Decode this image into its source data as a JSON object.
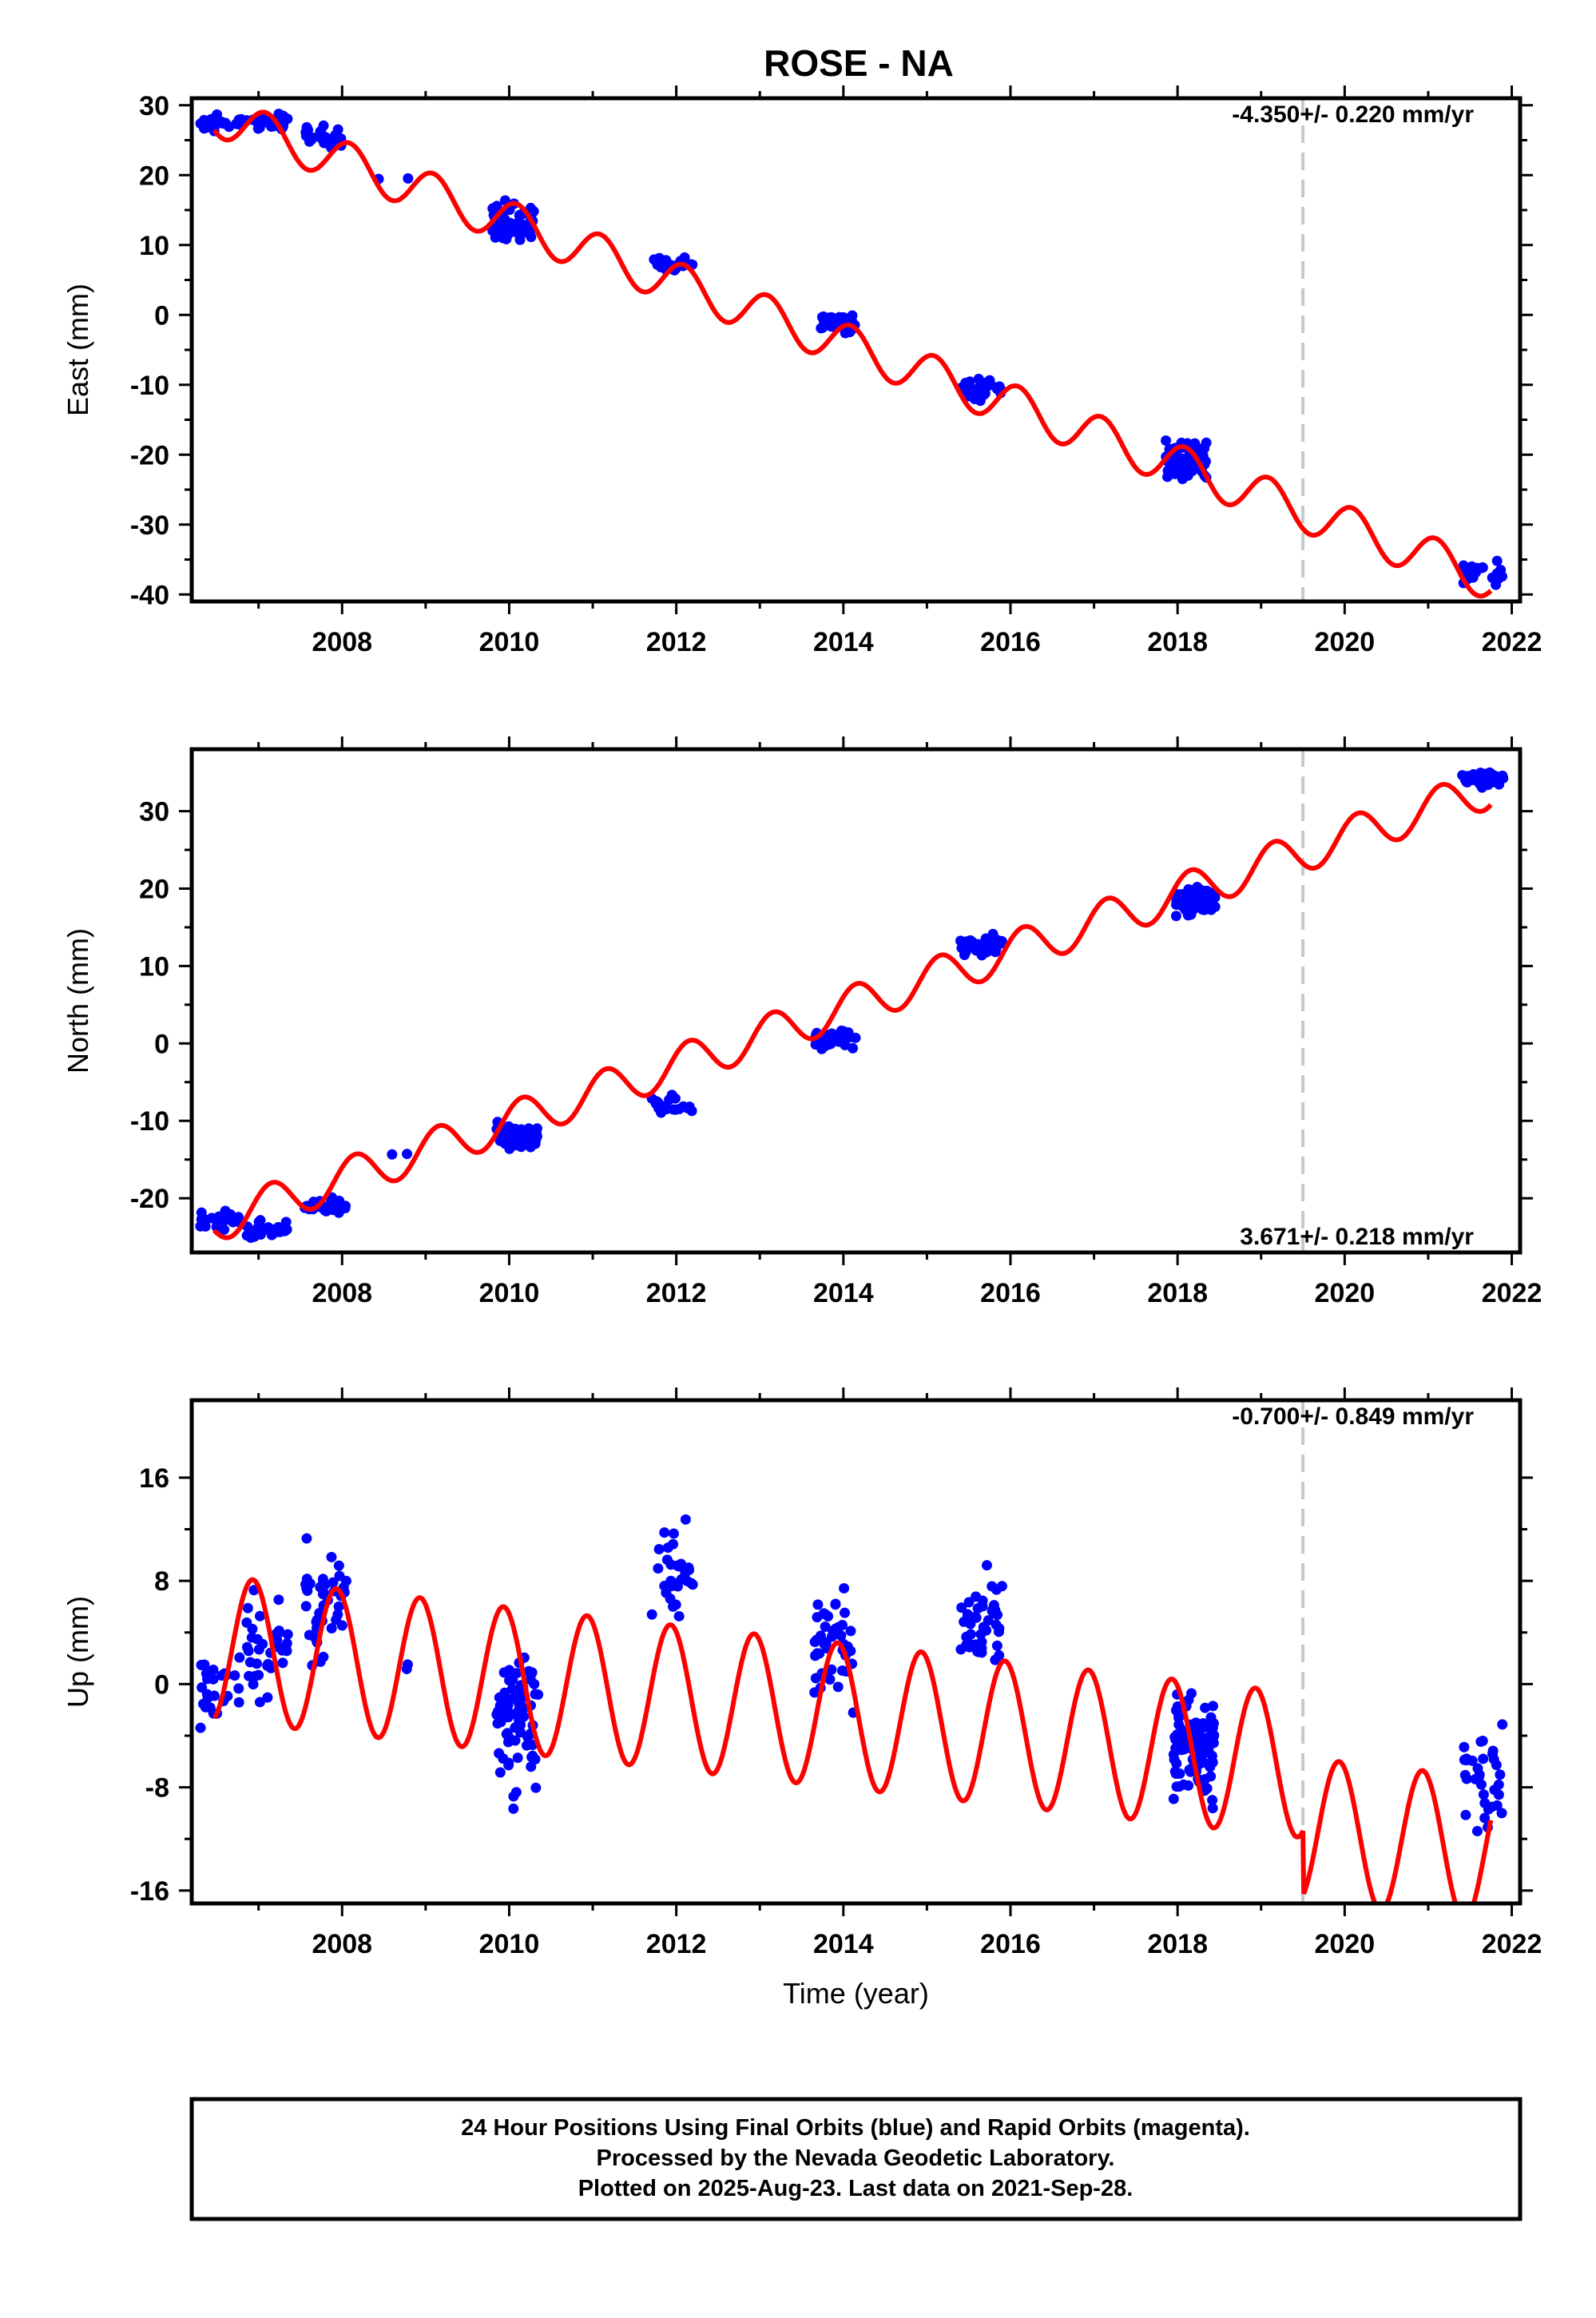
{
  "page": {
    "title": "ROSE - NA",
    "footer": {
      "line1": "24 Hour Positions Using Final Orbits (blue) and Rapid Orbits (magenta).",
      "line2": "Processed by the Nevada Geodetic Laboratory.",
      "line3": "Plotted on 2025-Aug-23. Last data on 2021-Sep-28."
    },
    "colors": {
      "final_orbits": "#0000ff",
      "model": "#ff0000",
      "marker": "#c8c8c8"
    }
  },
  "chart_data": [
    {
      "type": "scatter",
      "title": "ROSE - NA",
      "xlabel": "",
      "ylabel": "East (mm)",
      "xlim": [
        2006.2,
        2022.1
      ],
      "ylim": [
        -41,
        31
      ],
      "xticks": [
        "2008",
        "2010",
        "2012",
        "2014",
        "2016",
        "2018",
        "2020",
        "2022"
      ],
      "yticks": [
        "30",
        "20",
        "10",
        "0",
        "-10",
        "-20",
        "-30",
        "-40"
      ],
      "rate_label": "-4.350+/- 0.220 mm/yr",
      "rate_position": "top-right",
      "marker_year": 2019.5,
      "model": {
        "trend_mm_per_yr": -4.35,
        "ref_year": 2006.5,
        "ref_value": 28.5,
        "annual_amplitude": 3.0,
        "annual_phase": 1.0,
        "step_at_marker": 0
      },
      "clusters": [
        {
          "year": 2006.55,
          "center": 27.5,
          "spread": 3.5,
          "count": 25
        },
        {
          "year": 2007.1,
          "center": 27.8,
          "spread": 3.5,
          "count": 30
        },
        {
          "year": 2007.8,
          "center": 25.5,
          "spread": 4.0,
          "count": 30
        },
        {
          "year": 2008.6,
          "center": 19.5,
          "spread": 1.0,
          "count": 2
        },
        {
          "year": 2010.05,
          "center": 13.0,
          "spread": 8.0,
          "count": 70
        },
        {
          "year": 2011.95,
          "center": 7.5,
          "spread": 3.5,
          "count": 20
        },
        {
          "year": 2013.9,
          "center": -1.0,
          "spread": 5.0,
          "count": 35
        },
        {
          "year": 2015.65,
          "center": -10.5,
          "spread": 4.5,
          "count": 35
        },
        {
          "year": 2018.1,
          "center": -21.0,
          "spread": 7.0,
          "count": 80
        },
        {
          "year": 2021.65,
          "center": -37.0,
          "spread": 4.5,
          "count": 30
        }
      ]
    },
    {
      "type": "scatter",
      "xlabel": "",
      "ylabel": "North (mm)",
      "xlim": [
        2006.2,
        2022.1
      ],
      "ylim": [
        -27,
        38
      ],
      "xticks": [
        "2008",
        "2010",
        "2012",
        "2014",
        "2016",
        "2018",
        "2020",
        "2022"
      ],
      "yticks": [
        "30",
        "20",
        "10",
        "0",
        "-10",
        "-20"
      ],
      "rate_label": "3.671+/- 0.218 mm/yr",
      "rate_position": "bottom-right",
      "marker_year": 2019.5,
      "model": {
        "trend_mm_per_yr": 3.671,
        "ref_year": 2006.5,
        "ref_value": -23.0,
        "annual_amplitude": 2.6,
        "annual_phase": 0.6,
        "step_at_marker": 0
      },
      "clusters": [
        {
          "year": 2006.55,
          "center": -23.0,
          "spread": 3.5,
          "count": 25
        },
        {
          "year": 2007.1,
          "center": -24.0,
          "spread": 3.5,
          "count": 30
        },
        {
          "year": 2007.8,
          "center": -21.0,
          "spread": 3.5,
          "count": 30
        },
        {
          "year": 2008.6,
          "center": -14.5,
          "spread": 1.0,
          "count": 2
        },
        {
          "year": 2010.1,
          "center": -12.0,
          "spread": 4.0,
          "count": 70
        },
        {
          "year": 2011.95,
          "center": -8.0,
          "spread": 3.5,
          "count": 20
        },
        {
          "year": 2013.9,
          "center": 0.5,
          "spread": 4.0,
          "count": 35
        },
        {
          "year": 2015.65,
          "center": 12.5,
          "spread": 4.0,
          "count": 35
        },
        {
          "year": 2018.2,
          "center": 18.5,
          "spread": 5.0,
          "count": 80
        },
        {
          "year": 2021.65,
          "center": 34.0,
          "spread": 3.0,
          "count": 30
        }
      ]
    },
    {
      "type": "scatter",
      "xlabel": "Time (year)",
      "ylabel": "Up (mm)",
      "xlim": [
        2006.2,
        2022.1
      ],
      "ylim": [
        -17,
        22
      ],
      "xticks": [
        "2008",
        "2010",
        "2012",
        "2014",
        "2016",
        "2018",
        "2020",
        "2022"
      ],
      "yticks": [
        "16",
        "8",
        "0",
        "-8",
        "-16"
      ],
      "rate_label": "-0.700+/- 0.849 mm/yr",
      "rate_position": "top-right",
      "marker_year": 2019.5,
      "model": {
        "trend_mm_per_yr": -0.7,
        "ref_year": 2006.5,
        "ref_value": 2.8,
        "annual_amplitude": 5.6,
        "annual_phase": 2.0,
        "step_at_marker": -5.0
      },
      "clusters": [
        {
          "year": 2006.55,
          "center": 0.0,
          "spread": 10.0,
          "count": 25
        },
        {
          "year": 2007.1,
          "center": 2.0,
          "spread": 12.0,
          "count": 35
        },
        {
          "year": 2007.8,
          "center": 6.0,
          "spread": 14.0,
          "count": 40
        },
        {
          "year": 2008.6,
          "center": 1.0,
          "spread": 2.0,
          "count": 2
        },
        {
          "year": 2010.1,
          "center": -3.0,
          "spread": 16.0,
          "count": 80
        },
        {
          "year": 2011.95,
          "center": 8.0,
          "spread": 12.0,
          "count": 30
        },
        {
          "year": 2013.9,
          "center": 3.0,
          "spread": 12.0,
          "count": 45
        },
        {
          "year": 2015.65,
          "center": 5.0,
          "spread": 12.0,
          "count": 45
        },
        {
          "year": 2018.2,
          "center": -5.0,
          "spread": 12.0,
          "count": 90
        },
        {
          "year": 2021.65,
          "center": -7.0,
          "spread": 12.0,
          "count": 35
        }
      ]
    }
  ]
}
